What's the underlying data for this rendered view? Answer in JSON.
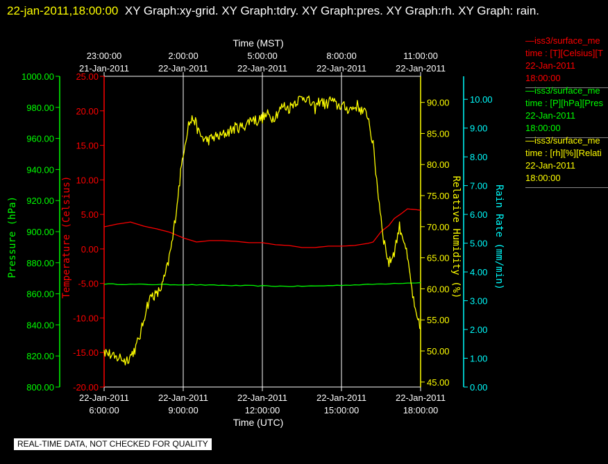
{
  "header": {
    "timestamp": "22-jan-2011,18:00:00",
    "graphs": "XY Graph:xy-grid.  XY Graph:tdry.  XY Graph:pres.  XY Graph:rh.  XY Graph: rain."
  },
  "legend": [
    {
      "color": "#ff0000",
      "lines": [
        "—iss3/surface_me",
        "time : [T][Celsius][T",
        "22-Jan-2011",
        "18:00:00"
      ]
    },
    {
      "color": "#00ff00",
      "lines": [
        "—iss3/surface_me",
        "time : [P][hPa][Pres",
        "22-Jan-2011",
        "18:00:00"
      ]
    },
    {
      "color": "#ffff00",
      "lines": [
        "—iss3/surface_me",
        "time : [rh][%][Relati",
        "22-Jan-2011",
        "18:00:00"
      ]
    }
  ],
  "banner": "REAL-TIME DATA, NOT CHECKED FOR QUALITY",
  "chart_data": {
    "type": "line",
    "x_bottom": {
      "label": "Time (UTC)",
      "ticks": [
        {
          "t": 6,
          "date": "22-Jan-2011",
          "time": "6:00:00"
        },
        {
          "t": 9,
          "date": "22-Jan-2011",
          "time": "9:00:00"
        },
        {
          "t": 12,
          "date": "22-Jan-2011",
          "time": "12:00:00"
        },
        {
          "t": 15,
          "date": "22-Jan-2011",
          "time": "15:00:00"
        },
        {
          "t": 18,
          "date": "22-Jan-2011",
          "time": "18:00:00"
        }
      ]
    },
    "x_top": {
      "label": "Time (MST)",
      "ticks": [
        {
          "t": 6,
          "time": "23:00:00",
          "date": "21-Jan-2011"
        },
        {
          "t": 9,
          "time": "2:00:00",
          "date": "22-Jan-2011"
        },
        {
          "t": 12,
          "time": "5:00:00",
          "date": "22-Jan-2011"
        },
        {
          "t": 15,
          "time": "8:00:00",
          "date": "22-Jan-2011"
        },
        {
          "t": 18,
          "time": "11:00:00",
          "date": "22-Jan-2011"
        }
      ]
    },
    "xlim": [
      6,
      18
    ],
    "axes": [
      {
        "id": "pres",
        "label": "Pressure (hPa)",
        "color": "#00ff00",
        "ylim": [
          800,
          1000
        ],
        "ticks": [
          "800.00",
          "820.00",
          "840.00",
          "860.00",
          "880.00",
          "900.00",
          "920.00",
          "940.00",
          "960.00",
          "980.00",
          "1000.00"
        ]
      },
      {
        "id": "temp",
        "label": "Temperature (Celsius)",
        "color": "#ff0000",
        "ylim": [
          -20,
          25
        ],
        "ticks": [
          "-20.00",
          "-15.00",
          "-10.00",
          "-5.00",
          "0.00",
          "5.00",
          "10.00",
          "15.00",
          "20.00",
          "25.00"
        ]
      },
      {
        "id": "rh",
        "label": "Relative Humidity (%)",
        "color": "#ffff00",
        "ylim": [
          44.2,
          94.2
        ],
        "ticks": [
          "45.00",
          "50.00",
          "55.00",
          "60.00",
          "65.00",
          "70.00",
          "75.00",
          "80.00",
          "85.00",
          "90.00"
        ]
      },
      {
        "id": "rain",
        "label": "Rain Rate (mm/min)",
        "color": "#00ffff",
        "ylim": [
          0,
          10.8
        ],
        "ticks": [
          "0.00",
          "1.00",
          "2.00",
          "3.00",
          "4.00",
          "5.00",
          "6.00",
          "7.00",
          "8.00",
          "9.00",
          "10.00"
        ]
      }
    ],
    "series": [
      {
        "axis": "temp",
        "color": "#ff0000",
        "x": [
          6,
          6.5,
          7,
          7.5,
          8,
          8.5,
          9,
          9.5,
          10,
          10.5,
          11,
          11.5,
          12,
          12.5,
          13,
          13.5,
          14,
          14.5,
          15,
          15.5,
          16,
          16.2,
          16.5,
          16.8,
          17,
          17.3,
          17.5,
          17.8,
          18
        ],
        "y": [
          3.2,
          3.6,
          3.9,
          3.3,
          2.9,
          2.4,
          1.6,
          1.0,
          1.2,
          1.2,
          1.1,
          0.9,
          0.9,
          0.6,
          0.5,
          0.2,
          0.2,
          0.4,
          0.4,
          0.5,
          0.8,
          1.0,
          2.5,
          3.4,
          4.4,
          5.2,
          5.8,
          5.7,
          5.6
        ]
      },
      {
        "axis": "pres",
        "color": "#00ff00",
        "x": [
          6,
          7,
          8,
          9,
          10,
          11,
          12,
          13,
          14,
          15,
          16,
          17,
          18
        ],
        "y": [
          866.3,
          866.1,
          866.0,
          865.9,
          865.6,
          865.3,
          865.1,
          864.8,
          865.0,
          865.5,
          866.0,
          866.7,
          867.2
        ],
        "noise": 0.25
      },
      {
        "axis": "rh",
        "color": "#ffff00",
        "x": [
          6,
          6.2,
          6.4,
          6.6,
          6.8,
          7.0,
          7.2,
          7.4,
          7.6,
          7.8,
          8.0,
          8.2,
          8.4,
          8.6,
          8.8,
          9.0,
          9.2,
          9.4,
          9.6,
          9.8,
          10.0,
          10.2,
          10.4,
          10.6,
          10.8,
          11.0,
          11.2,
          11.4,
          11.6,
          11.8,
          12.0,
          12.2,
          12.4,
          12.6,
          12.8,
          13.0,
          13.2,
          13.4,
          13.6,
          13.8,
          14.0,
          14.2,
          14.4,
          14.6,
          14.8,
          15.0,
          15.2,
          15.4,
          15.6,
          15.8,
          16.0,
          16.2,
          16.4,
          16.6,
          16.8,
          17.0,
          17.2,
          17.4,
          17.6,
          17.8,
          18.0
        ],
        "y": [
          50.0,
          49.5,
          48.8,
          49.0,
          48.4,
          49.2,
          50.5,
          53.0,
          57.0,
          59.0,
          59.0,
          60.5,
          63.5,
          68.0,
          75.0,
          82.0,
          86.5,
          87.5,
          85.0,
          84.0,
          84.0,
          84.5,
          84.5,
          85.0,
          85.5,
          86.0,
          86.0,
          86.5,
          87.5,
          87.0,
          87.5,
          88.0,
          87.5,
          88.5,
          89.5,
          89.0,
          90.0,
          90.5,
          91.0,
          90.0,
          89.0,
          90.5,
          89.5,
          90.5,
          89.5,
          89.5,
          89.0,
          89.0,
          89.5,
          88.5,
          88.0,
          83.0,
          75.0,
          68.0,
          64.0,
          66.0,
          70.0,
          67.5,
          62.0,
          56.0,
          53.5
        ],
        "noise": 0.9
      }
    ],
    "grid": "vertical",
    "background": "#000000"
  }
}
